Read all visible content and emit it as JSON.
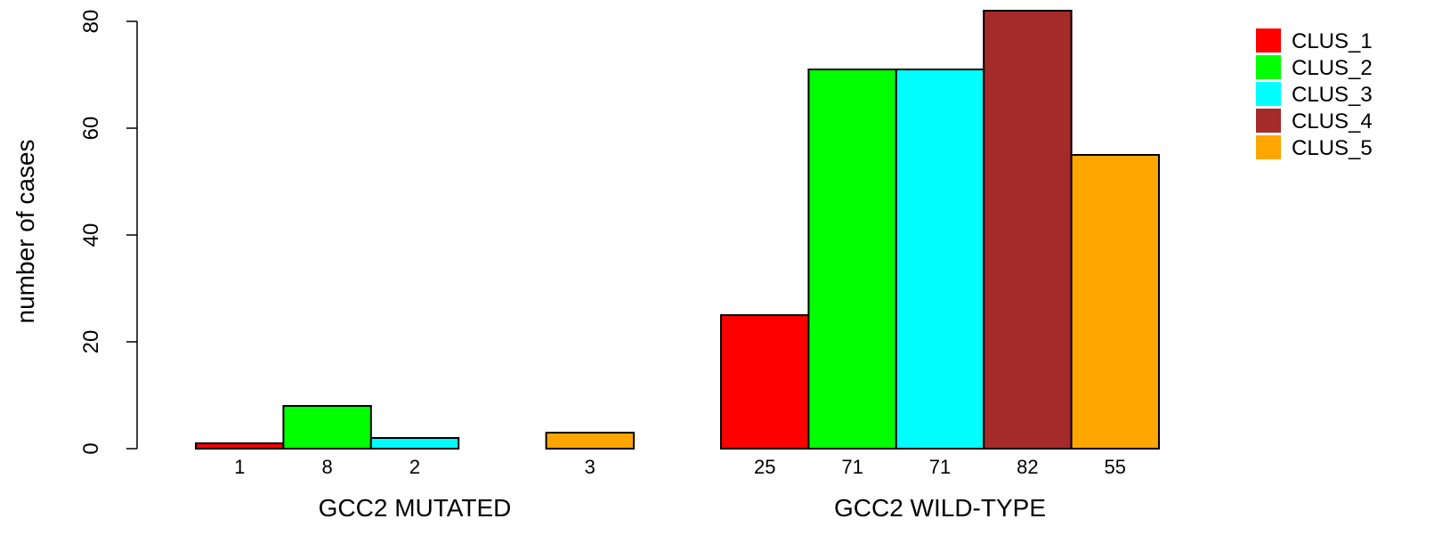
{
  "chart_data": {
    "type": "bar",
    "ylabel": "number of cases",
    "ylim": [
      0,
      80
    ],
    "yticks": [
      0,
      20,
      40,
      60,
      80
    ],
    "series_names": [
      "CLUS_1",
      "CLUS_2",
      "CLUS_3",
      "CLUS_4",
      "CLUS_5"
    ],
    "colors": [
      "#ff0000",
      "#00ff00",
      "#00ffff",
      "#a52a2a",
      "#ffa500"
    ],
    "groups": [
      {
        "label": "GCC2 MUTATED",
        "values": [
          1,
          8,
          2,
          0,
          3
        ],
        "value_labels": [
          "1",
          "8",
          "2",
          "",
          "3"
        ]
      },
      {
        "label": "GCC2 WILD-TYPE",
        "values": [
          25,
          71,
          71,
          82,
          55
        ],
        "value_labels": [
          "25",
          "71",
          "71",
          "82",
          "55"
        ]
      }
    ],
    "legend_position": "top-right"
  }
}
